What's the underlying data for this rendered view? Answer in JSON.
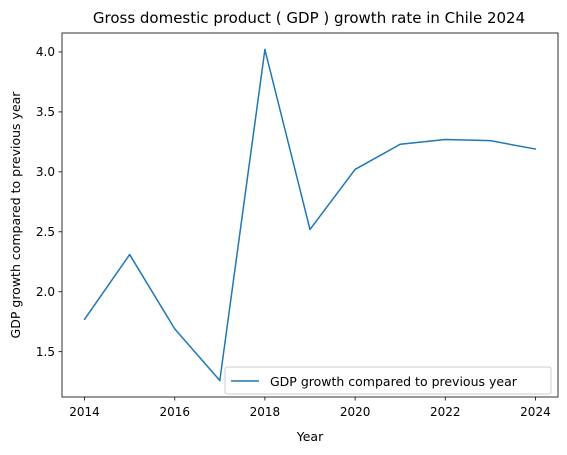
{
  "chart_data": {
    "type": "line",
    "title": "Gross domestic product ( GDP ) growth rate in Chile 2024",
    "xlabel": "Year",
    "ylabel": "GDP growth compared to previous year",
    "x": [
      2014,
      2015,
      2016,
      2017,
      2018,
      2019,
      2020,
      2021,
      2022,
      2023,
      2024
    ],
    "series": [
      {
        "name": "GDP growth compared to previous year",
        "color": "#1f77b4",
        "values": [
          1.77,
          2.31,
          1.69,
          1.26,
          4.02,
          2.52,
          3.02,
          3.23,
          3.27,
          3.26,
          3.19
        ]
      }
    ],
    "xlim": [
      2013.5,
      2024.5
    ],
    "ylim": [
      1.122,
      4.158
    ],
    "xticks": [
      "2014",
      "2016",
      "2018",
      "2020",
      "2022",
      "2024"
    ],
    "yticks": [
      "1.5",
      "2.0",
      "2.5",
      "3.0",
      "3.5",
      "4.0"
    ],
    "grid": false,
    "legend_position": "lower right"
  }
}
